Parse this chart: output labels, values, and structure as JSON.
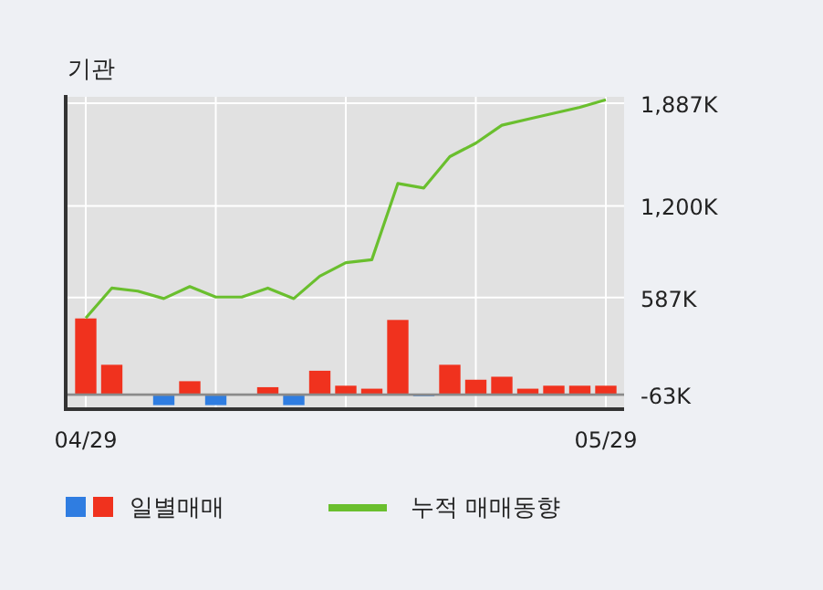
{
  "chart_data": {
    "type": "bar",
    "title": "기관",
    "categories": [
      "04/29",
      null,
      null,
      null,
      null,
      null,
      null,
      null,
      null,
      null,
      null,
      null,
      null,
      null,
      null,
      null,
      null,
      null,
      null,
      null,
      "05/29"
    ],
    "ylim": [
      -160,
      1930
    ],
    "yticks": [
      {
        "value": -63,
        "label": "-63K"
      },
      {
        "value": 587,
        "label": "587K"
      },
      {
        "value": 1200,
        "label": "1,200K"
      },
      {
        "value": 1887,
        "label": "1,887K"
      }
    ],
    "grid": true,
    "legend": "bottom",
    "ref_lines": [
      {
        "axis": "y",
        "value": -63,
        "color": "#8a8a8a"
      }
    ],
    "series": [
      {
        "name": "일별매매",
        "color": "#f0321e",
        "colors": [
          "#f0321e",
          "#f0321e",
          "#f0321e",
          "#2f7de1",
          "#f0321e",
          "#2f7de1",
          "#f0321e",
          "#f0321e",
          "#2f7de1",
          "#f0321e",
          "#f0321e",
          "#f0321e",
          "#f0321e",
          "#2f7de1",
          "#f0321e",
          "#f0321e",
          "#f0321e",
          "#f0321e",
          "#f0321e",
          "#f0321e",
          "#f0321e"
        ],
        "base": [
          -63,
          -63,
          null,
          -63,
          -63,
          -63,
          null,
          -63,
          -63,
          -63,
          -63,
          -63,
          -63,
          -63,
          -63,
          -63,
          -63,
          -63,
          -63,
          -63,
          -63
        ],
        "values": [
          510,
          200,
          null,
          -70,
          90,
          -70,
          null,
          50,
          -70,
          160,
          60,
          40,
          500,
          -10,
          200,
          100,
          120,
          40,
          60,
          60,
          60
        ]
      },
      {
        "name": "누적 매매동향",
        "type": "line",
        "color": "#6abf2e",
        "values": [
          450,
          650,
          630,
          580,
          660,
          590,
          590,
          650,
          580,
          730,
          820,
          840,
          1350,
          1320,
          1530,
          1620,
          1740,
          1780,
          1820,
          1860,
          1910
        ]
      }
    ]
  }
}
